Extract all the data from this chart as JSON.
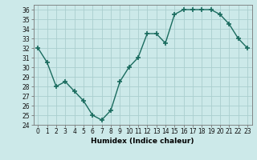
{
  "x": [
    0,
    1,
    2,
    3,
    4,
    5,
    6,
    7,
    8,
    9,
    10,
    11,
    12,
    13,
    14,
    15,
    16,
    17,
    18,
    19,
    20,
    21,
    22,
    23
  ],
  "y": [
    32,
    30.5,
    28,
    28.5,
    27.5,
    26.5,
    25,
    24.5,
    25.5,
    28.5,
    30,
    31,
    33.5,
    33.5,
    32.5,
    35.5,
    36,
    36,
    36,
    36,
    35.5,
    34.5,
    33,
    32
  ],
  "xlabel": "Humidex (Indice chaleur)",
  "ylim": [
    24,
    36.5
  ],
  "xlim": [
    -0.5,
    23.5
  ],
  "line_color": "#1a6b5e",
  "marker_color": "#1a6b5e",
  "bg_color": "#cce9e9",
  "grid_color": "#aacece",
  "yticks": [
    24,
    25,
    26,
    27,
    28,
    29,
    30,
    31,
    32,
    33,
    34,
    35,
    36
  ],
  "xticks": [
    0,
    1,
    2,
    3,
    4,
    5,
    6,
    7,
    8,
    9,
    10,
    11,
    12,
    13,
    14,
    15,
    16,
    17,
    18,
    19,
    20,
    21,
    22,
    23
  ],
  "tick_fontsize": 5.5,
  "xlabel_fontsize": 6.5
}
